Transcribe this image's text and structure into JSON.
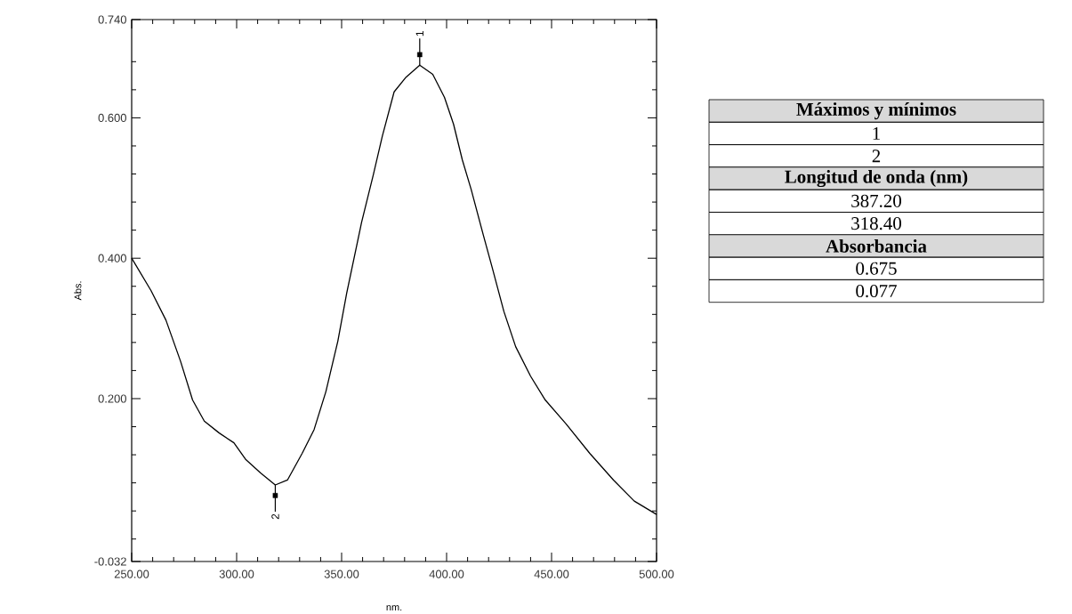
{
  "chart_data": [
    {
      "type": "line",
      "xlabel": "nm.",
      "ylabel": "Abs.",
      "series": [
        {
          "type": "line",
          "color": "#000000",
          "x": [
            250,
            259.2,
            266.3,
            273.3,
            279,
            284.6,
            291.7,
            298.7,
            304.4,
            311.4,
            318.4,
            324.2,
            331.2,
            336.9,
            342.5,
            348.2,
            352.4,
            359.5,
            365.1,
            369.4,
            375,
            380.7,
            387.2,
            393.4,
            399,
            403.3,
            407.5,
            411.7,
            417.4,
            421.6,
            427.3,
            432.9,
            440,
            447,
            456.9,
            468.2,
            479.5,
            489.4,
            500
          ],
          "values": [
            0.4,
            0.354,
            0.312,
            0.253,
            0.198,
            0.168,
            0.151,
            0.137,
            0.113,
            0.094,
            0.077,
            0.084,
            0.122,
            0.156,
            0.21,
            0.282,
            0.35,
            0.451,
            0.519,
            0.574,
            0.637,
            0.658,
            0.675,
            0.662,
            0.629,
            0.591,
            0.54,
            0.498,
            0.434,
            0.388,
            0.324,
            0.274,
            0.232,
            0.198,
            0.164,
            0.122,
            0.084,
            0.054,
            0.035
          ]
        },
        {
          "type": "scatter",
          "marker": "square",
          "color": "#000000",
          "x": [
            387.2,
            318.4
          ],
          "values": [
            0.69,
            0.062
          ]
        }
      ],
      "xlim": [
        250,
        500
      ],
      "ylim": [
        -0.032,
        0.74
      ],
      "xticks": [
        {
          "value": 250,
          "label": "250.00"
        },
        {
          "value": 260,
          "label": null
        },
        {
          "value": 270,
          "label": null
        },
        {
          "value": 280,
          "label": null
        },
        {
          "value": 290,
          "label": null
        },
        {
          "value": 300,
          "label": "300.00"
        },
        {
          "value": 310,
          "label": null
        },
        {
          "value": 320,
          "label": null
        },
        {
          "value": 330,
          "label": null
        },
        {
          "value": 340,
          "label": null
        },
        {
          "value": 350,
          "label": "350.00"
        },
        {
          "value": 360,
          "label": null
        },
        {
          "value": 370,
          "label": null
        },
        {
          "value": 380,
          "label": null
        },
        {
          "value": 390,
          "label": null
        },
        {
          "value": 400,
          "label": "400.00"
        },
        {
          "value": 410,
          "label": null
        },
        {
          "value": 420,
          "label": null
        },
        {
          "value": 430,
          "label": null
        },
        {
          "value": 440,
          "label": null
        },
        {
          "value": 450,
          "label": "450.00"
        },
        {
          "value": 460,
          "label": null
        },
        {
          "value": 470,
          "label": null
        },
        {
          "value": 480,
          "label": null
        },
        {
          "value": 490,
          "label": null
        },
        {
          "value": 500,
          "label": "500.00"
        }
      ],
      "yticks": [
        {
          "value": -0.032,
          "label": "-0.032"
        },
        {
          "value": 0,
          "label": null
        },
        {
          "value": 0.04,
          "label": null
        },
        {
          "value": 0.08,
          "label": null
        },
        {
          "value": 0.12,
          "label": null
        },
        {
          "value": 0.16,
          "label": null
        },
        {
          "value": 0.2,
          "label": "0.200"
        },
        {
          "value": 0.24,
          "label": null
        },
        {
          "value": 0.28,
          "label": null
        },
        {
          "value": 0.32,
          "label": null
        },
        {
          "value": 0.36,
          "label": null
        },
        {
          "value": 0.4,
          "label": "0.400"
        },
        {
          "value": 0.44,
          "label": null
        },
        {
          "value": 0.48,
          "label": null
        },
        {
          "value": 0.52,
          "label": null
        },
        {
          "value": 0.56,
          "label": null
        },
        {
          "value": 0.6,
          "label": "0.600"
        },
        {
          "value": 0.64,
          "label": null
        },
        {
          "value": 0.68,
          "label": null
        },
        {
          "value": 0.74,
          "label": "0.740"
        }
      ],
      "annotations": [
        {
          "text": "1",
          "x": 387.2,
          "y": 0.675
        },
        {
          "text": "2",
          "x": 318.4,
          "y": 0.077
        }
      ]
    },
    {
      "type": "other",
      "annotations": [
        "Máximos y mínimos",
        "1",
        "2",
        "Longitud de onda (nm)",
        "387.20",
        "318.40",
        "Absorbancia",
        "0.675",
        "0.077"
      ]
    }
  ]
}
